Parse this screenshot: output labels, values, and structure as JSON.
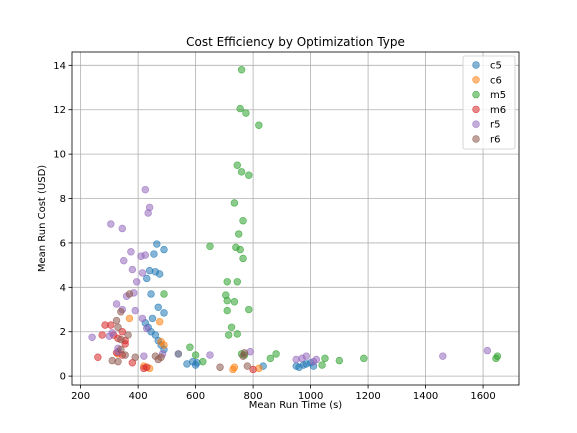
{
  "chart_data": {
    "type": "scatter",
    "title": "Cost Efficiency by Optimization Type",
    "xlabel": "Mean Run Time (s)",
    "ylabel": "Mean Run Cost (USD)",
    "xlim": [
      170,
      1725
    ],
    "ylim": [
      -0.4,
      14.6
    ],
    "xticks": [
      200,
      400,
      600,
      800,
      1000,
      1200,
      1400,
      1600
    ],
    "yticks": [
      0,
      2,
      4,
      6,
      8,
      10,
      12,
      14
    ],
    "grid": true,
    "legend_position": "top-right",
    "series": [
      {
        "name": "c5",
        "color": "#1f77b4",
        "points": [
          [
            465,
            5.95
          ],
          [
            490,
            5.7
          ],
          [
            455,
            5.5
          ],
          [
            440,
            4.75
          ],
          [
            460,
            4.7
          ],
          [
            475,
            4.6
          ],
          [
            430,
            4.4
          ],
          [
            445,
            3.7
          ],
          [
            470,
            3.1
          ],
          [
            490,
            2.85
          ],
          [
            450,
            2.6
          ],
          [
            425,
            2.4
          ],
          [
            435,
            2.2
          ],
          [
            445,
            2.0
          ],
          [
            460,
            1.85
          ],
          [
            470,
            1.6
          ],
          [
            480,
            1.4
          ],
          [
            490,
            1.2
          ],
          [
            590,
            0.65
          ],
          [
            600,
            0.5
          ],
          [
            605,
            0.6
          ],
          [
            570,
            0.55
          ],
          [
            950,
            0.45
          ],
          [
            960,
            0.4
          ],
          [
            975,
            0.5
          ],
          [
            985,
            0.55
          ],
          [
            1000,
            0.6
          ],
          [
            1010,
            0.45
          ],
          [
            835,
            0.45
          ]
        ]
      },
      {
        "name": "c6",
        "color": "#ff7f0e",
        "points": [
          [
            370,
            2.6
          ],
          [
            475,
            2.45
          ],
          [
            480,
            1.55
          ],
          [
            490,
            1.4
          ],
          [
            330,
            1.0
          ],
          [
            420,
            0.45
          ],
          [
            440,
            0.35
          ],
          [
            730,
            0.3
          ],
          [
            735,
            0.4
          ],
          [
            820,
            0.35
          ]
        ]
      },
      {
        "name": "m5",
        "color": "#2ca02c",
        "points": [
          [
            760,
            13.8
          ],
          [
            755,
            12.05
          ],
          [
            775,
            11.85
          ],
          [
            820,
            11.3
          ],
          [
            745,
            9.5
          ],
          [
            760,
            9.2
          ],
          [
            785,
            9.05
          ],
          [
            735,
            7.8
          ],
          [
            765,
            7.0
          ],
          [
            750,
            6.4
          ],
          [
            650,
            5.85
          ],
          [
            740,
            5.8
          ],
          [
            755,
            5.7
          ],
          [
            765,
            5.3
          ],
          [
            710,
            4.25
          ],
          [
            745,
            4.25
          ],
          [
            705,
            3.65
          ],
          [
            710,
            3.4
          ],
          [
            735,
            3.35
          ],
          [
            785,
            3.0
          ],
          [
            710,
            2.95
          ],
          [
            725,
            2.2
          ],
          [
            745,
            1.9
          ],
          [
            715,
            1.85
          ],
          [
            490,
            3.7
          ],
          [
            580,
            1.3
          ],
          [
            540,
            1.0
          ],
          [
            600,
            0.95
          ],
          [
            625,
            0.65
          ],
          [
            760,
            1.0
          ],
          [
            770,
            0.95
          ],
          [
            860,
            0.8
          ],
          [
            880,
            1.0
          ],
          [
            1050,
            0.8
          ],
          [
            1100,
            0.7
          ],
          [
            1185,
            0.8
          ],
          [
            1040,
            0.5
          ],
          [
            1650,
            0.9
          ],
          [
            1645,
            0.8
          ]
        ]
      },
      {
        "name": "m6",
        "color": "#d62728",
        "points": [
          [
            285,
            2.3
          ],
          [
            305,
            2.3
          ],
          [
            345,
            2.0
          ],
          [
            315,
            1.85
          ],
          [
            275,
            1.85
          ],
          [
            330,
            1.7
          ],
          [
            355,
            1.6
          ],
          [
            355,
            1.45
          ],
          [
            325,
            1.05
          ],
          [
            345,
            0.95
          ],
          [
            260,
            0.85
          ],
          [
            380,
            0.6
          ],
          [
            420,
            0.35
          ],
          [
            430,
            0.4
          ],
          [
            800,
            0.3
          ]
        ]
      },
      {
        "name": "r5",
        "color": "#9467bd",
        "points": [
          [
            425,
            8.4
          ],
          [
            440,
            7.6
          ],
          [
            435,
            7.35
          ],
          [
            305,
            6.85
          ],
          [
            345,
            6.65
          ],
          [
            375,
            5.6
          ],
          [
            410,
            5.4
          ],
          [
            425,
            5.45
          ],
          [
            350,
            5.2
          ],
          [
            380,
            4.8
          ],
          [
            415,
            4.65
          ],
          [
            395,
            4.25
          ],
          [
            385,
            3.75
          ],
          [
            360,
            3.6
          ],
          [
            325,
            3.25
          ],
          [
            345,
            3.0
          ],
          [
            390,
            2.95
          ],
          [
            415,
            2.6
          ],
          [
            430,
            2.15
          ],
          [
            310,
            1.95
          ],
          [
            300,
            1.8
          ],
          [
            240,
            1.75
          ],
          [
            330,
            1.25
          ],
          [
            330,
            1.1
          ],
          [
            420,
            0.9
          ],
          [
            540,
            1.0
          ],
          [
            650,
            0.95
          ],
          [
            790,
            1.1
          ],
          [
            950,
            0.75
          ],
          [
            970,
            0.8
          ],
          [
            985,
            0.9
          ],
          [
            1010,
            0.65
          ],
          [
            1020,
            0.75
          ],
          [
            1460,
            0.9
          ],
          [
            1615,
            1.15
          ],
          [
            485,
            1.0
          ]
        ]
      },
      {
        "name": "r6",
        "color": "#8c564b",
        "points": [
          [
            370,
            3.7
          ],
          [
            340,
            2.9
          ],
          [
            325,
            2.5
          ],
          [
            330,
            2.2
          ],
          [
            365,
            1.85
          ],
          [
            340,
            1.65
          ],
          [
            340,
            1.2
          ],
          [
            355,
            0.95
          ],
          [
            390,
            0.85
          ],
          [
            310,
            0.7
          ],
          [
            330,
            0.65
          ],
          [
            460,
            0.9
          ],
          [
            470,
            0.75
          ],
          [
            480,
            0.85
          ],
          [
            685,
            0.4
          ],
          [
            765,
            0.9
          ],
          [
            770,
            1.05
          ],
          [
            780,
            0.45
          ]
        ]
      }
    ]
  }
}
